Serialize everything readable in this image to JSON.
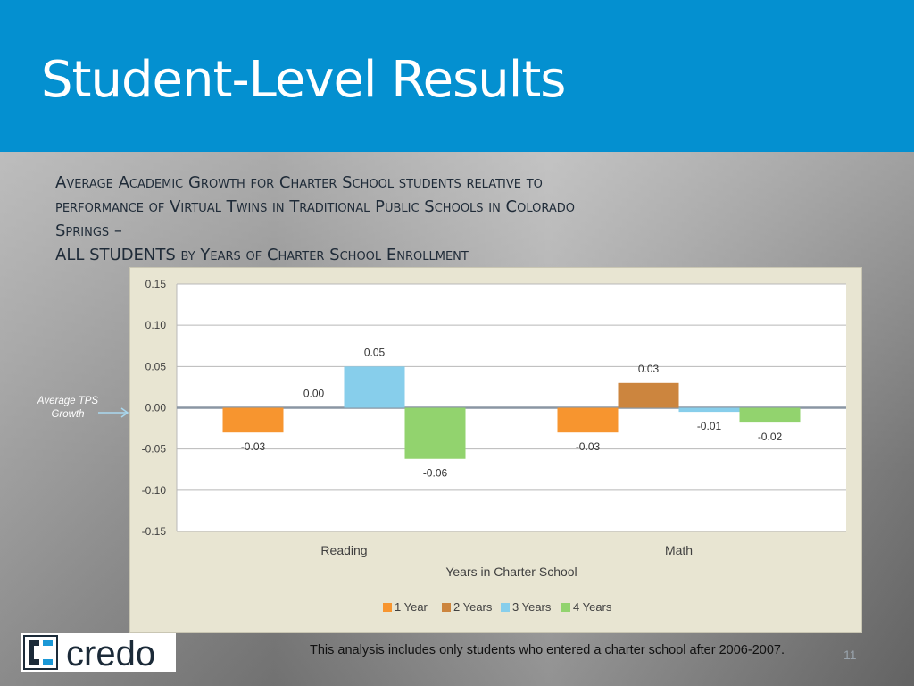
{
  "slide": {
    "title": "Student-Level Results",
    "subtitle_lines": [
      "Average Academic Growth for Charter School students relative to",
      "performance of Virtual Twins in Traditional Public Schools in Colorado",
      "Springs –",
      "ALL STUDENTS by Years of Charter School Enrollment"
    ],
    "avg_label": "Average TPS Growth",
    "footnote": "This analysis includes only students who entered a charter school after 2006-2007.",
    "page_number": "11",
    "logo_text": "credo",
    "colors": {
      "header": "#0490d0",
      "chart_bg": "#e8e5d2"
    }
  },
  "chart_data": {
    "type": "bar",
    "title": "",
    "xlabel": "Years in Charter School",
    "ylabel": "",
    "ylim": [
      -0.15,
      0.15
    ],
    "yticks": [
      0.15,
      0.1,
      0.05,
      0.0,
      -0.05,
      -0.1,
      -0.15
    ],
    "ytick_labels": [
      "0.15",
      "0.10",
      "0.05",
      "0.00",
      "-0.05",
      "-0.10",
      "-0.15"
    ],
    "categories": [
      "Reading",
      "Math"
    ],
    "grid": true,
    "legend": "bottom",
    "series": [
      {
        "name": "1 Year",
        "color": "#f7952f",
        "values": [
          -0.03,
          -0.03
        ],
        "labels": [
          "-0.03",
          "-0.03"
        ]
      },
      {
        "name": "2 Years",
        "color": "#cc853e",
        "values": [
          0.0,
          0.03
        ],
        "labels": [
          "0.00",
          "0.03"
        ]
      },
      {
        "name": "3 Years",
        "color": "#87ceeb",
        "values": [
          0.05,
          -0.005
        ],
        "labels": [
          "0.05",
          "-0.01"
        ]
      },
      {
        "name": "4 Years",
        "color": "#92d36e",
        "values": [
          -0.062,
          -0.018
        ],
        "labels": [
          "-0.06",
          "-0.02"
        ]
      }
    ]
  }
}
